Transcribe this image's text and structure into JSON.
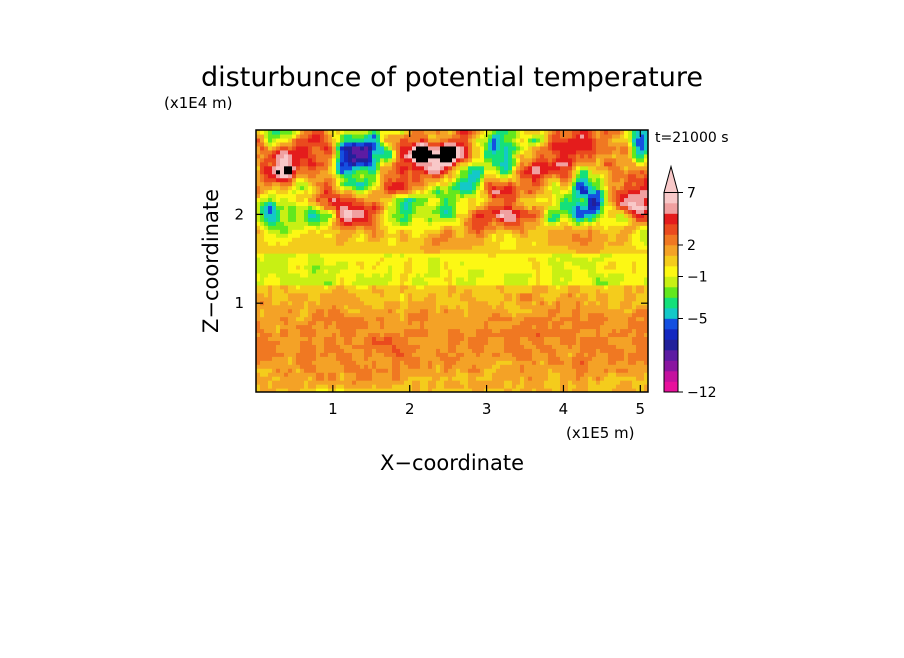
{
  "chart_data": {
    "type": "heatmap",
    "title": "disturbunce of potential temperature",
    "time_label": "t=21000 s",
    "xlabel": "X−coordinate",
    "ylabel": "Z−coordinate",
    "x_multiplier": "(x1E5 m)",
    "y_multiplier": "(x1E4 m)",
    "xlim": [
      0,
      5.1
    ],
    "ylim": [
      0,
      2.95
    ],
    "x_ticks": [
      1,
      2,
      3,
      4,
      5
    ],
    "x_tick_labels": [
      "1",
      "2",
      "3",
      "4",
      "5"
    ],
    "y_ticks": [
      1,
      2
    ],
    "y_tick_labels": [
      "1",
      "2"
    ],
    "colorbar": {
      "levels": [
        -12,
        -11,
        -10,
        -9,
        -8,
        -7,
        -6,
        -5,
        -4,
        -3,
        -2,
        -1,
        0,
        1,
        2,
        3,
        4,
        5,
        6,
        7,
        8,
        9,
        10
      ],
      "colors": [
        "#e8119c",
        "#c4129e",
        "#8a16a0",
        "#5d1ca2",
        "#22209a",
        "#1428c0",
        "#1450e0",
        "#14c8c8",
        "#14e07a",
        "#62e81e",
        "#c8f014",
        "#fcf814",
        "#f4cc1c",
        "#f4a226",
        "#f07822",
        "#ea4a1e",
        "#e41c1c",
        "#f0a0a0",
        "#f8c8c8"
      ],
      "tick_values": [
        7,
        2,
        -1,
        -5,
        -12
      ],
      "tick_labels": [
        "7",
        "2",
        "−1",
        "−5",
        "−12"
      ]
    }
  }
}
